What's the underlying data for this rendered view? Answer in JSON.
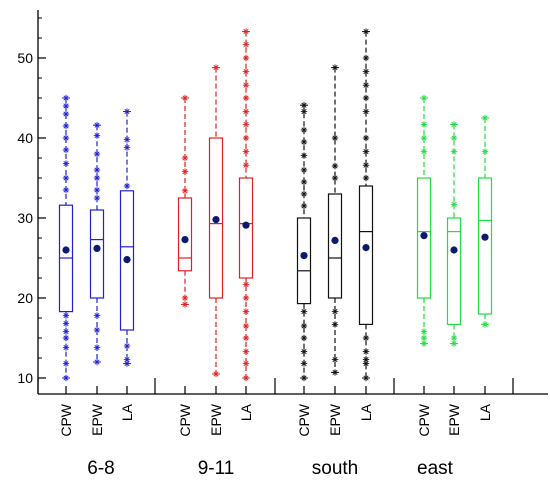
{
  "chart_data": {
    "type": "box",
    "ylim": [
      8,
      56
    ],
    "yticks": [
      10,
      20,
      30,
      40,
      50
    ],
    "xlabel": "",
    "ylabel": "",
    "groups": [
      {
        "name": "6-8",
        "color": "#2222cc",
        "boxes": [
          {
            "label": "CPW",
            "wlo": 10,
            "q1": 18.3,
            "median": 25,
            "q3": 31.6,
            "whi": 45,
            "mean": 26,
            "outliers": [
              10,
              11.8,
              13.8,
              15,
              15.8,
              16.8,
              17.8,
              33.5,
              35,
              36.8,
              38.5,
              40,
              41.5,
              43,
              44,
              45
            ]
          },
          {
            "label": "EPW",
            "wlo": 12,
            "q1": 20,
            "median": 27.3,
            "q3": 31,
            "whi": 41.6,
            "mean": 26.2,
            "outliers": [
              12,
              13.8,
              16,
              17.8,
              32.5,
              33.5,
              35,
              36,
              38,
              40.3,
              41.6
            ]
          },
          {
            "label": "LA",
            "wlo": 11.8,
            "q1": 16,
            "median": 26.4,
            "q3": 33.4,
            "whi": 43.3,
            "mean": 24.8,
            "outliers": [
              11.8,
              12.3,
              14,
              34,
              38.8,
              39.8,
              43.3
            ]
          }
        ]
      },
      {
        "name": "9-11",
        "color": "#dd2222",
        "boxes": [
          {
            "label": "CPW",
            "wlo": 19.2,
            "q1": 23.4,
            "median": 25,
            "q3": 32.5,
            "whi": 45,
            "mean": 27.3,
            "outliers": [
              19.2,
              20,
              33.4,
              35.8,
              37.5,
              45
            ]
          },
          {
            "label": "EPW",
            "wlo": 10.5,
            "q1": 20,
            "median": 29.3,
            "q3": 40,
            "whi": 48.8,
            "mean": 29.8,
            "outliers": [
              10.5,
              48.8
            ]
          },
          {
            "label": "LA",
            "wlo": 10,
            "q1": 22.5,
            "median": 29.3,
            "q3": 35,
            "whi": 53.3,
            "mean": 29.1,
            "outliers": [
              10,
              11.8,
              13.3,
              15,
              16.5,
              18.3,
              20,
              21.7,
              36.6,
              38.3,
              40,
              41.7,
              43.3,
              45,
              46.6,
              48.3,
              50,
              51.7,
              53.3
            ]
          }
        ]
      },
      {
        "name": "south",
        "color": "#111111",
        "boxes": [
          {
            "label": "CPW",
            "wlo": 10,
            "q1": 19.3,
            "median": 23.4,
            "q3": 30,
            "whi": 44.1,
            "mean": 25.3,
            "outliers": [
              10,
              11.8,
              13.3,
              15,
              16.5,
              18.3,
              31.5,
              33,
              34.5,
              36,
              37.8,
              39.5,
              41,
              43.3,
              44.1
            ]
          },
          {
            "label": "EPW",
            "wlo": 10.7,
            "q1": 20,
            "median": 25,
            "q3": 33,
            "whi": 48.8,
            "mean": 27.2,
            "outliers": [
              10.7,
              12.3,
              16.7,
              18.3,
              35,
              36.5,
              40,
              48.8
            ]
          },
          {
            "label": "LA",
            "wlo": 10,
            "q1": 16.7,
            "median": 28.3,
            "q3": 34,
            "whi": 53.3,
            "mean": 26.3,
            "outliers": [
              10,
              11.8,
              12.3,
              13.3,
              15,
              35,
              36.6,
              38.3,
              40,
              43.3,
              45,
              46.6,
              48.3,
              50,
              53.3
            ]
          }
        ]
      },
      {
        "name": "east",
        "color": "#22dd44",
        "boxes": [
          {
            "label": "CPW",
            "wlo": 14.3,
            "q1": 20,
            "median": 28.3,
            "q3": 35,
            "whi": 45,
            "mean": 27.8,
            "outliers": [
              14.3,
              15,
              15.8,
              38.3,
              40,
              41.7,
              45
            ]
          },
          {
            "label": "EPW",
            "wlo": 14.3,
            "q1": 16.7,
            "median": 28.3,
            "q3": 30,
            "whi": 41.7,
            "mean": 26,
            "outliers": [
              14.3,
              15,
              31.7,
              38.3,
              40,
              41.7
            ]
          },
          {
            "label": "LA",
            "wlo": 16.7,
            "q1": 18,
            "median": 29.7,
            "q3": 35,
            "whi": 42.5,
            "mean": 27.6,
            "outliers": [
              16.7,
              38.3,
              42.5
            ]
          }
        ]
      }
    ]
  }
}
